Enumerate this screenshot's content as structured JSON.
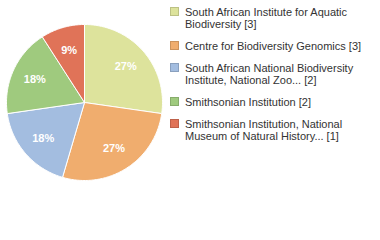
{
  "chart_data": {
    "type": "pie",
    "categories": [
      "South African Institute for Aquatic Biodiversity [3]",
      "Centre for Biodiversity Genomics [3]",
      "South African National Biodiversity Institute, National Zoo... [2]",
      "Smithsonian Institution [2]",
      "Smithsonian Institution, National Museum of Natural History... [1]"
    ],
    "values": [
      27,
      27,
      18,
      18,
      9
    ],
    "value_labels": [
      "27%",
      "27%",
      "18%",
      "18%",
      "9%"
    ],
    "colors": [
      "#dde39c",
      "#f0ad6e",
      "#a3bde0",
      "#9fca7e",
      "#e07358"
    ],
    "data_labels": true,
    "legend": "right"
  }
}
